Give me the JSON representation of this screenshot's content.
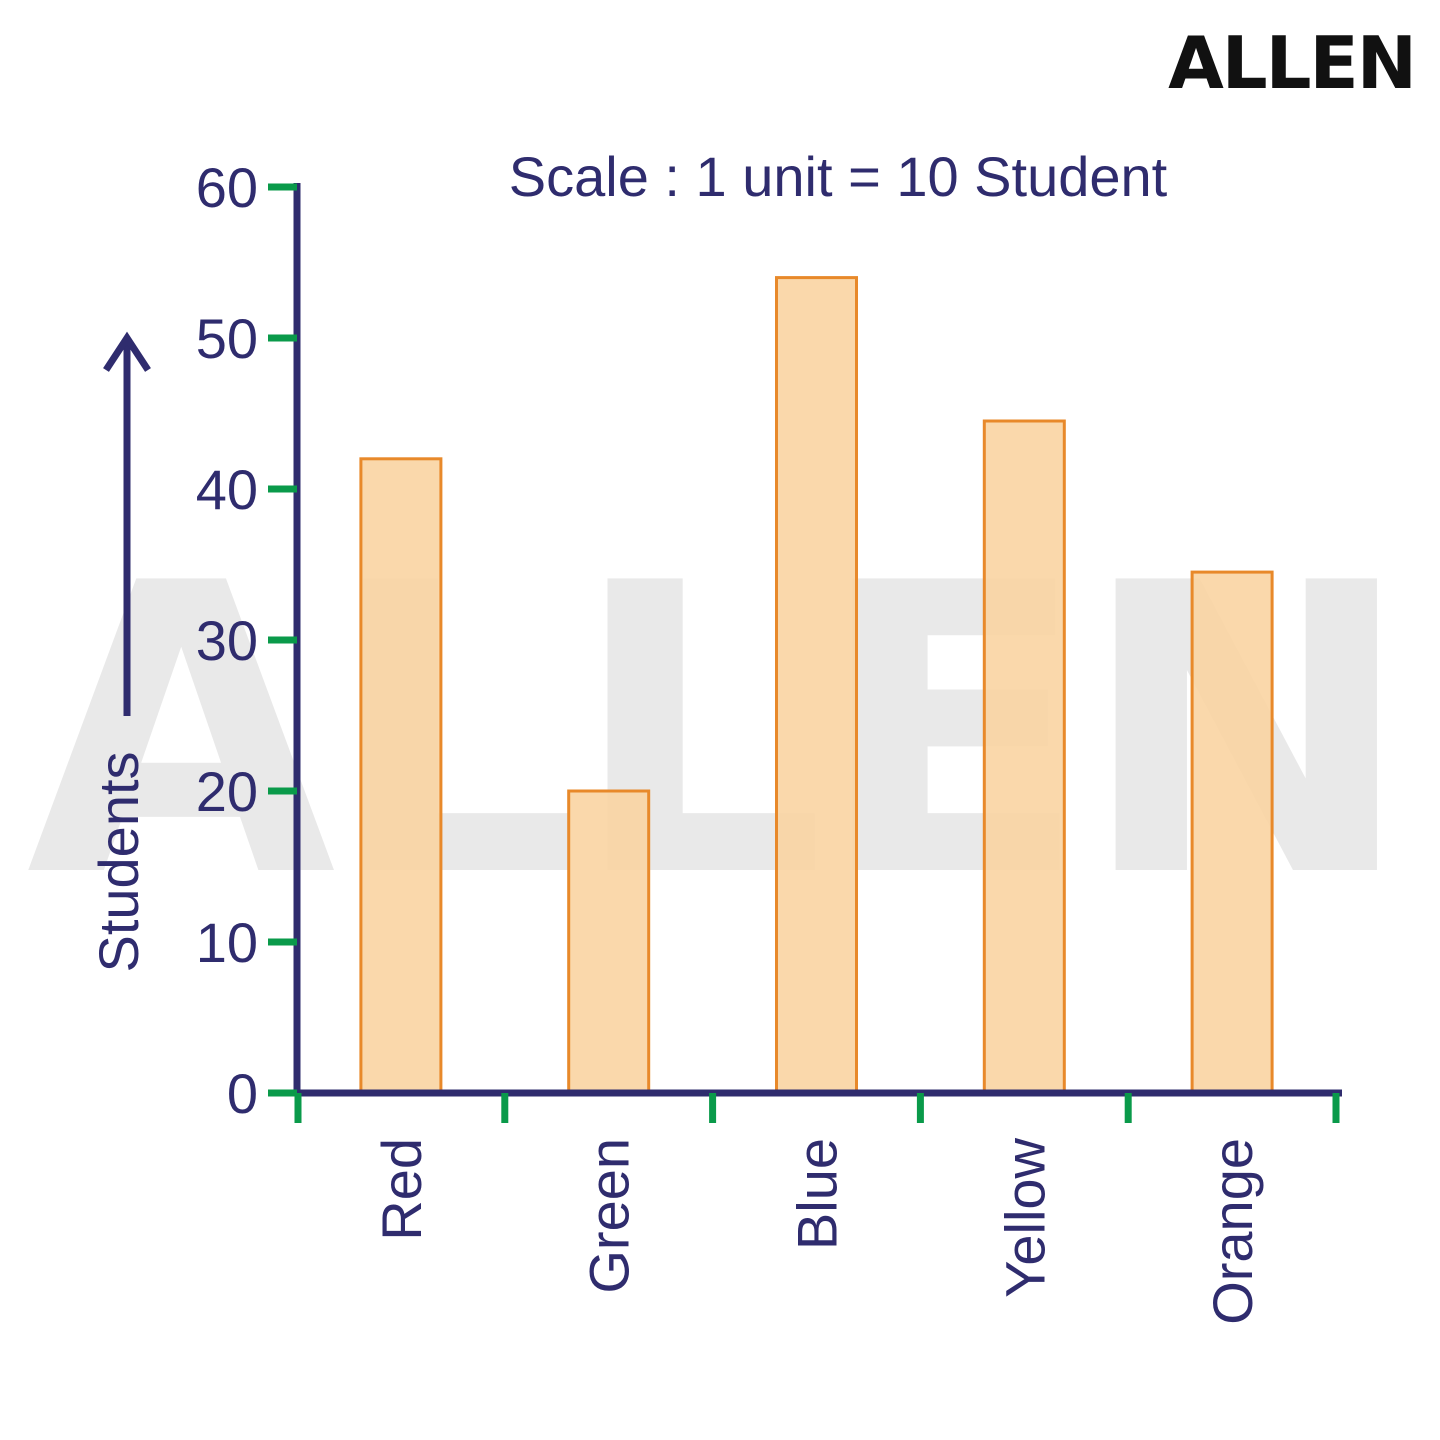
{
  "brand": {
    "logo_text": "ALLEN",
    "watermark_text": "ALLEN"
  },
  "colors": {
    "axis": "#2f2c6e",
    "tick": "#0a9a4a",
    "text": "#2f2c6e",
    "bar_fill": "#fad4a2",
    "bar_stroke": "#e8892a",
    "watermark": "#e9e9e9"
  },
  "chart_data": {
    "type": "bar",
    "title": "Scale : 1 unit = 10 Student",
    "xlabel": "",
    "ylabel": "Students",
    "categories": [
      "Red",
      "Green",
      "Blue",
      "Yellow",
      "Orange"
    ],
    "values": [
      42,
      20,
      54,
      44.5,
      34.5
    ],
    "ylim": [
      0,
      60
    ],
    "yticks": [
      0,
      10,
      20,
      30,
      40,
      50,
      60
    ],
    "grid": false,
    "legend": "none"
  }
}
